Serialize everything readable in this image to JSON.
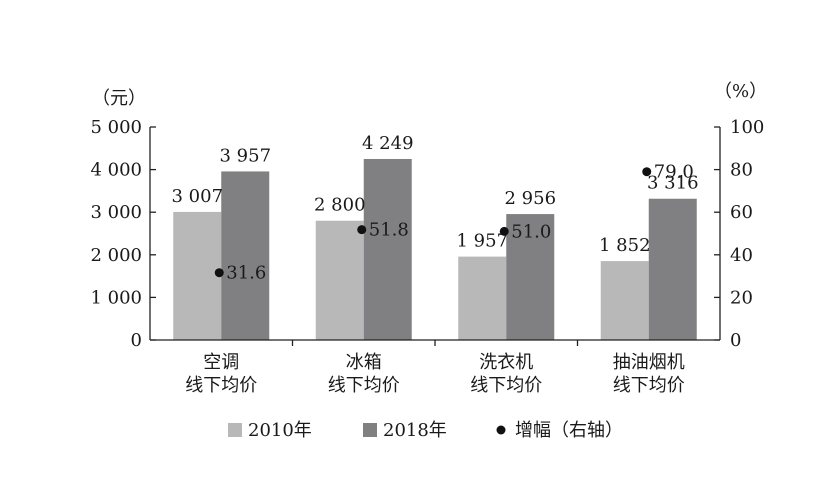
{
  "chart_data": {
    "type": "bar",
    "categories": [
      [
        "空调",
        "线下均价"
      ],
      [
        "冰箱",
        "线下均价"
      ],
      [
        "洗衣机",
        "线下均价"
      ],
      [
        "抽油烟机",
        "线下均价"
      ]
    ],
    "series": [
      {
        "name": "2010年",
        "type": "bar",
        "axis": "left",
        "color": "#b8b8b9",
        "values": [
          3007,
          2800,
          1957,
          1852
        ],
        "labels": [
          "3 007",
          "2 800",
          "1 957",
          "1 852"
        ]
      },
      {
        "name": "2018年",
        "type": "bar",
        "axis": "left",
        "color": "#808083",
        "values": [
          3957,
          4249,
          2956,
          3316
        ],
        "labels": [
          "3 957",
          "4 249",
          "2 956",
          "3 316"
        ]
      },
      {
        "name": "增幅（右轴）",
        "type": "scatter",
        "axis": "right",
        "color": "#111111",
        "values": [
          31.6,
          51.8,
          51.0,
          79.0
        ],
        "labels": [
          "31.6",
          "51.8",
          "51.0",
          "79.0"
        ]
      }
    ],
    "y_left": {
      "unit": "（元）",
      "range": [
        0,
        5000
      ],
      "ticks": [
        0,
        1000,
        2000,
        3000,
        4000,
        5000
      ],
      "tick_labels": [
        "0",
        "1 000",
        "2 000",
        "3 000",
        "4 000",
        "5 000"
      ]
    },
    "y_right": {
      "unit": "（%）",
      "range": [
        0,
        100
      ],
      "ticks": [
        0,
        20,
        40,
        60,
        80,
        100
      ],
      "tick_labels": [
        "0",
        "20",
        "40",
        "60",
        "80",
        "100"
      ]
    },
    "grid": false,
    "legend_position": "bottom"
  }
}
